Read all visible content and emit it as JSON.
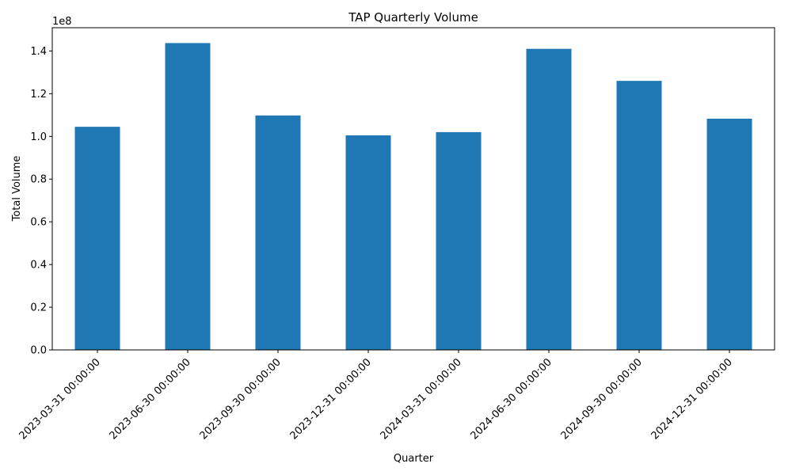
{
  "chart_data": {
    "type": "bar",
    "title": "TAP Quarterly Volume",
    "xlabel": "Quarter",
    "ylabel": "Total Volume",
    "y_offset_label": "1e8",
    "categories": [
      "2023-03-31 00:00:00",
      "2023-06-30 00:00:00",
      "2023-09-30 00:00:00",
      "2023-12-31 00:00:00",
      "2024-03-31 00:00:00",
      "2024-06-30 00:00:00",
      "2024-09-30 00:00:00",
      "2024-12-31 00:00:00"
    ],
    "values": [
      104500000,
      143700000,
      109800000,
      100500000,
      102000000,
      141000000,
      126000000,
      108300000
    ],
    "ylim": [
      0,
      150900000
    ],
    "yticks": [
      0,
      20000000,
      40000000,
      60000000,
      80000000,
      100000000,
      120000000,
      140000000
    ],
    "ytick_labels": [
      "0.0",
      "0.2",
      "0.4",
      "0.6",
      "0.8",
      "1.0",
      "1.2",
      "1.4"
    ],
    "bar_color": "#1f77b4",
    "grid": false,
    "legend": false
  }
}
